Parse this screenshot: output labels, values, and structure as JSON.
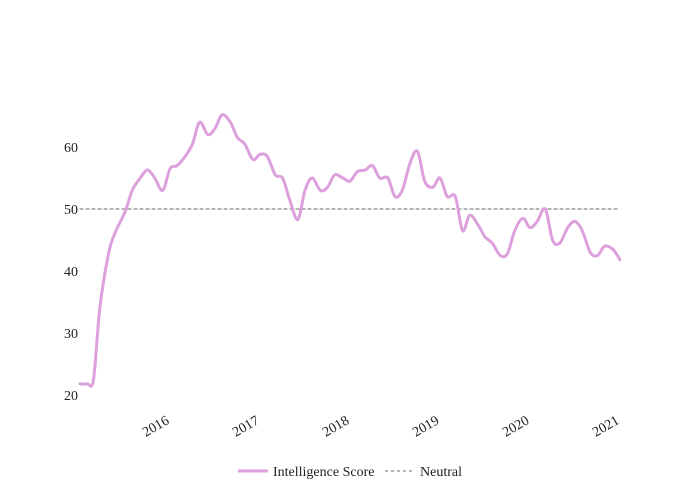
{
  "chart_data": {
    "type": "line",
    "title": "",
    "xlabel": "",
    "ylabel": "",
    "xlim": [
      2015.0,
      2021.0
    ],
    "ylim": [
      20,
      70
    ],
    "y_ticks": [
      20,
      30,
      40,
      50,
      60
    ],
    "x_ticks": [
      2016,
      2017,
      2018,
      2019,
      2020,
      2021
    ],
    "x_tick_labels": [
      "2016",
      "2017",
      "2018",
      "2019",
      "2020",
      "2021"
    ],
    "grid": false,
    "legend_position": "bottom-center",
    "series": [
      {
        "name": "Intelligence Score",
        "color": "#dda0dd",
        "style": "solid",
        "points": [
          [
            2015.0,
            21.8
          ],
          [
            2015.08,
            21.8
          ],
          [
            2015.15,
            22.5
          ],
          [
            2015.22,
            34.0
          ],
          [
            2015.32,
            43.0
          ],
          [
            2015.4,
            46.5
          ],
          [
            2015.5,
            49.5
          ],
          [
            2015.58,
            53.0
          ],
          [
            2015.67,
            55.0
          ],
          [
            2015.75,
            56.3
          ],
          [
            2015.83,
            55.0
          ],
          [
            2015.92,
            53.0
          ],
          [
            2016.0,
            56.5
          ],
          [
            2016.08,
            57.0
          ],
          [
            2016.17,
            58.5
          ],
          [
            2016.25,
            60.5
          ],
          [
            2016.33,
            64.0
          ],
          [
            2016.42,
            62.0
          ],
          [
            2016.5,
            63.0
          ],
          [
            2016.58,
            65.2
          ],
          [
            2016.67,
            64.0
          ],
          [
            2016.75,
            61.5
          ],
          [
            2016.83,
            60.5
          ],
          [
            2016.92,
            58.0
          ],
          [
            2017.0,
            58.8
          ],
          [
            2017.08,
            58.5
          ],
          [
            2017.17,
            55.5
          ],
          [
            2017.25,
            55.0
          ],
          [
            2017.33,
            51.5
          ],
          [
            2017.42,
            48.3
          ],
          [
            2017.5,
            53.0
          ],
          [
            2017.58,
            55.0
          ],
          [
            2017.67,
            53.0
          ],
          [
            2017.75,
            53.5
          ],
          [
            2017.83,
            55.5
          ],
          [
            2017.92,
            55.0
          ],
          [
            2018.0,
            54.5
          ],
          [
            2018.08,
            56.0
          ],
          [
            2018.17,
            56.3
          ],
          [
            2018.25,
            57.0
          ],
          [
            2018.33,
            55.0
          ],
          [
            2018.42,
            55.0
          ],
          [
            2018.5,
            52.0
          ],
          [
            2018.58,
            53.0
          ],
          [
            2018.67,
            57.5
          ],
          [
            2018.75,
            59.3
          ],
          [
            2018.83,
            54.5
          ],
          [
            2018.92,
            53.5
          ],
          [
            2019.0,
            55.0
          ],
          [
            2019.08,
            52.0
          ],
          [
            2019.17,
            52.0
          ],
          [
            2019.25,
            46.5
          ],
          [
            2019.33,
            49.0
          ],
          [
            2019.42,
            47.5
          ],
          [
            2019.5,
            45.5
          ],
          [
            2019.58,
            44.5
          ],
          [
            2019.67,
            42.5
          ],
          [
            2019.75,
            42.8
          ],
          [
            2019.83,
            46.5
          ],
          [
            2019.92,
            48.5
          ],
          [
            2020.0,
            47.0
          ],
          [
            2020.08,
            48.0
          ],
          [
            2020.17,
            50.0
          ],
          [
            2020.25,
            45.0
          ],
          [
            2020.33,
            44.5
          ],
          [
            2020.42,
            47.0
          ],
          [
            2020.5,
            48.0
          ],
          [
            2020.58,
            46.5
          ],
          [
            2020.67,
            43.0
          ],
          [
            2020.75,
            42.5
          ],
          [
            2020.83,
            44.0
          ],
          [
            2020.92,
            43.5
          ],
          [
            2021.0,
            41.8
          ]
        ]
      },
      {
        "name": "Neutral",
        "color": "#888888",
        "style": "dashed",
        "points": [
          [
            2015.0,
            50
          ],
          [
            2021.0,
            50
          ]
        ]
      }
    ]
  }
}
